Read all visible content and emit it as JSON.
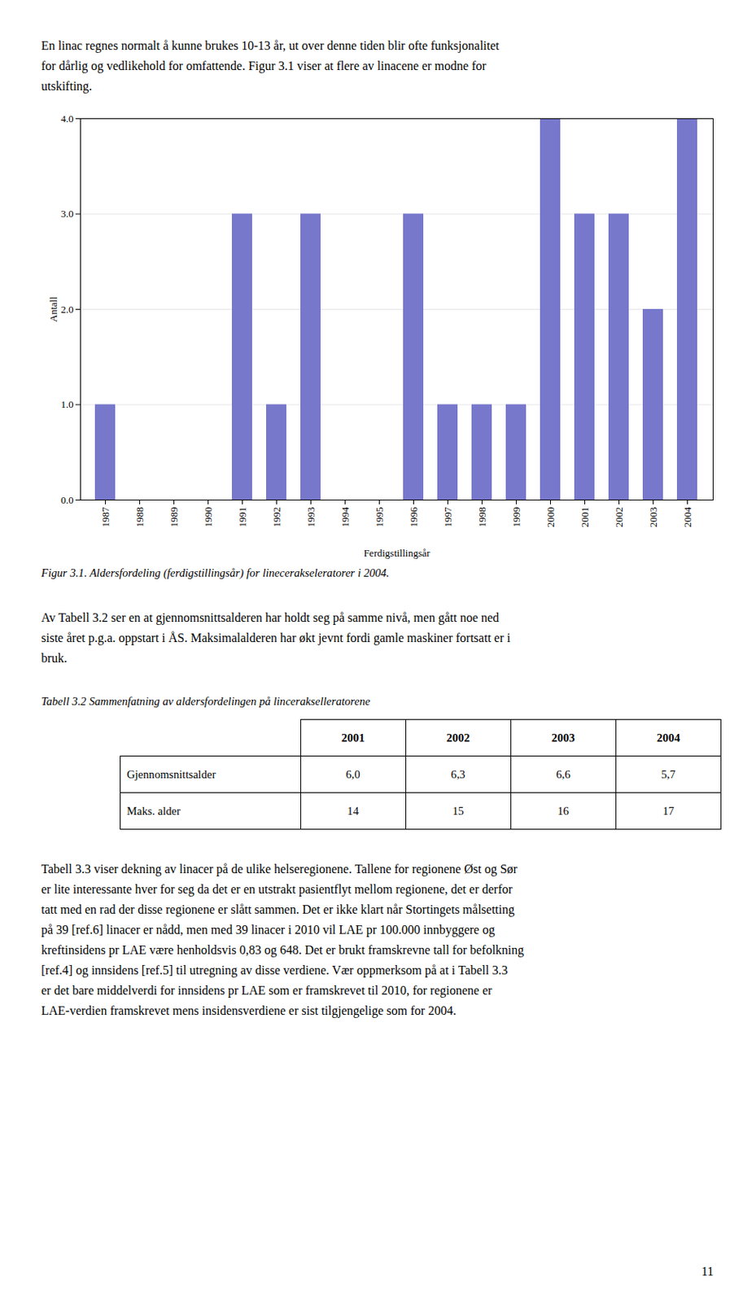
{
  "page_text_top": [
    "En linac regnes normalt å kunne brukes 10-13 år, ut over denne tiden blir ofte funksjonalitet",
    "for dårlig og vedlikehold for omfattende. Figur 3.1 viser at flere av linacene er modne for",
    "utskifting."
  ],
  "chart_data": {
    "type": "bar",
    "categories": [
      "1987",
      "1988",
      "1989",
      "1990",
      "1991",
      "1992",
      "1993",
      "1994",
      "1995",
      "1996",
      "1997",
      "1998",
      "1999",
      "2000",
      "2001",
      "2002",
      "2003",
      "2004"
    ],
    "values": [
      1,
      0,
      0,
      0,
      3,
      1,
      3,
      0,
      0,
      3,
      1,
      1,
      1,
      4,
      3,
      3,
      2,
      4
    ],
    "color": "#7777cc",
    "xlabel": "Ferdigstillingsår",
    "ylabel": "Antall",
    "ylim": [
      0,
      4
    ],
    "yticks": [
      0,
      1,
      2,
      3,
      4
    ],
    "grid": true
  },
  "fig_caption": "Figur 3.1.  Aldersfordeling (ferdigstillingsår) for linecerakseleratorer i 2004.",
  "body_text_1": [
    "Av Tabell 3.2 ser en at gjennomsnittsalderen har holdt seg på samme nivå, men gått noe ned",
    "siste året p.g.a. oppstart i ÅS. Maksimalalderen har økt jevnt fordi gamle maskiner fortsatt er i",
    "bruk."
  ],
  "table": {
    "caption": "Tabell 3.2 Sammenfatning av aldersfordelingen på lincerakselleratorene",
    "columns": [
      "2001",
      "2002",
      "2003",
      "2004"
    ],
    "rows": [
      {
        "label": "Gjennomsnittsalder",
        "values": [
          "6,0",
          "6,3",
          "6,6",
          "5,7"
        ]
      },
      {
        "label": "Maks. alder",
        "values": [
          "14",
          "15",
          "16",
          "17"
        ]
      }
    ]
  },
  "body_text_2": [
    "Tabell 3.3 viser dekning av linacer på de ulike helseregionene. Tallene for regionene Øst og Sør",
    "er lite interessante hver for seg da det er en utstrakt pasientflyt mellom regionene, det er derfor",
    "tatt med en rad der disse regionene er slått sammen. Det er ikke klart når Stortingets målsetting",
    "på 39 [ref.6] linacer er nådd, men med 39 linacer i 2010 vil LAE pr 100.000 innbyggere og",
    "kreftinsidens pr LAE være henholdsvis 0,83 og 648. Det er brukt framskrevne tall for befolkning",
    "[ref.4] og innsidens [ref.5] til utregning av disse verdiene. Vær oppmerksom på at i Tabell 3.3",
    "er det bare middelverdi for innsidens pr LAE som er framskrevet til 2010, for regionene er",
    "LAE-verdien framskrevet mens insidensverdiene er sist tilgjengelige som for 2004."
  ],
  "page_number": "11"
}
